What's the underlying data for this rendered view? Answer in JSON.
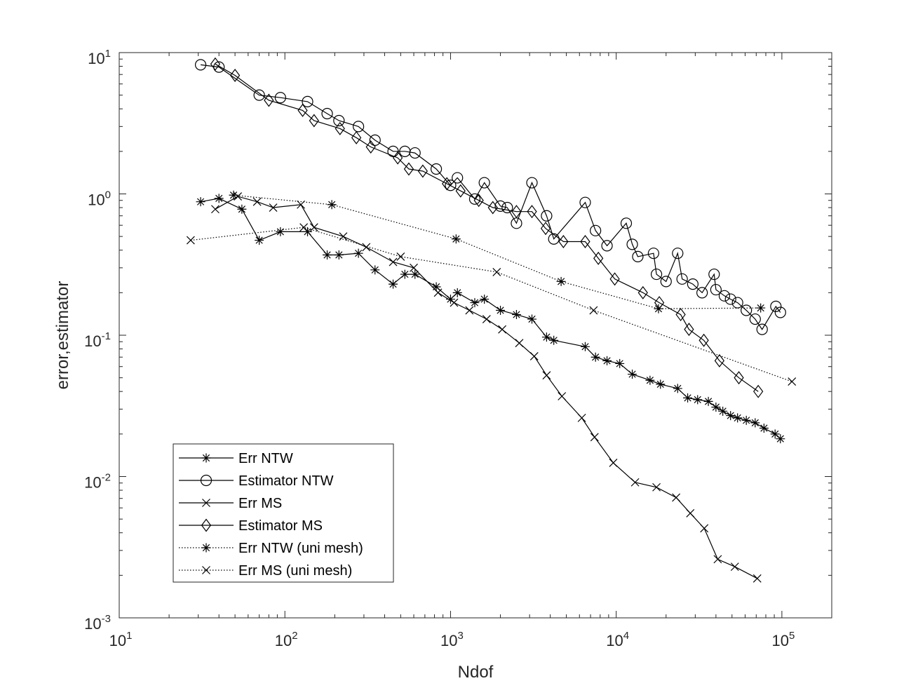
{
  "chart_data": {
    "type": "line",
    "scale": "log-log",
    "title": "",
    "xlabel": "Ndof",
    "ylabel": "error,estimator",
    "xlim": [
      10,
      200000
    ],
    "ylim": [
      0.001,
      10
    ],
    "x_ticks": [
      {
        "base": "10",
        "exp": "1",
        "value": 10
      },
      {
        "base": "10",
        "exp": "2",
        "value": 100
      },
      {
        "base": "10",
        "exp": "3",
        "value": 1000
      },
      {
        "base": "10",
        "exp": "4",
        "value": 10000
      },
      {
        "base": "10",
        "exp": "5",
        "value": 100000
      }
    ],
    "y_ticks": [
      {
        "base": "10",
        "exp": "-3",
        "value": 0.001
      },
      {
        "base": "10",
        "exp": "-2",
        "value": 0.01
      },
      {
        "base": "10",
        "exp": "-1",
        "value": 0.1
      },
      {
        "base": "10",
        "exp": "0",
        "value": 1
      },
      {
        "base": "10",
        "exp": "1",
        "value": 10
      }
    ],
    "legend_position": "bottom-left",
    "series": [
      {
        "name": "Err NTW",
        "marker": "asterisk",
        "line": "solid",
        "x": [
          31,
          40,
          55,
          70,
          94,
          137,
          180,
          212,
          278,
          350,
          450,
          530,
          610,
          820,
          1000,
          1100,
          1400,
          1600,
          2000,
          2500,
          3100,
          3800,
          4200,
          6500,
          7500,
          8800,
          10500,
          12500,
          16000,
          18500,
          23500,
          27000,
          31000,
          36000,
          40000,
          44000,
          49000,
          54000,
          61000,
          69000,
          78000,
          91000,
          98000
        ],
        "y": [
          0.88,
          0.93,
          0.78,
          0.47,
          0.54,
          0.54,
          0.37,
          0.37,
          0.38,
          0.29,
          0.23,
          0.27,
          0.27,
          0.22,
          0.18,
          0.2,
          0.17,
          0.18,
          0.15,
          0.14,
          0.13,
          0.097,
          0.092,
          0.083,
          0.07,
          0.066,
          0.063,
          0.053,
          0.048,
          0.045,
          0.042,
          0.036,
          0.035,
          0.034,
          0.031,
          0.029,
          0.027,
          0.026,
          0.025,
          0.024,
          0.022,
          0.02,
          0.0185
        ]
      },
      {
        "name": "Estimator NTW",
        "marker": "circle",
        "line": "solid",
        "x": [
          31,
          40,
          70,
          94,
          137,
          180,
          212,
          278,
          350,
          450,
          530,
          610,
          820,
          1000,
          1100,
          1400,
          1600,
          2000,
          2200,
          2500,
          3100,
          3800,
          4200,
          6500,
          7500,
          8800,
          11500,
          12500,
          13500,
          16800,
          17500,
          20000,
          23500,
          25000,
          29000,
          33000,
          39000,
          40000,
          45000,
          49000,
          54000,
          61000,
          69000,
          76000,
          92000,
          98000
        ],
        "y": [
          8.2,
          7.9,
          5.0,
          4.8,
          4.5,
          3.7,
          3.3,
          3.0,
          2.4,
          2.0,
          2.0,
          1.95,
          1.5,
          1.15,
          1.3,
          0.92,
          1.2,
          0.82,
          0.8,
          0.62,
          1.2,
          0.7,
          0.48,
          0.87,
          0.55,
          0.43,
          0.62,
          0.44,
          0.36,
          0.38,
          0.27,
          0.24,
          0.38,
          0.25,
          0.23,
          0.2,
          0.27,
          0.21,
          0.19,
          0.18,
          0.17,
          0.15,
          0.13,
          0.11,
          0.16,
          0.145
        ]
      },
      {
        "name": "Err MS",
        "marker": "x",
        "line": "solid",
        "x": [
          38,
          52,
          68,
          85,
          125,
          150,
          225,
          310,
          450,
          600,
          840,
          1050,
          1300,
          1650,
          2050,
          2600,
          3200,
          3800,
          4700,
          6200,
          7400,
          9600,
          13000,
          17500,
          23000,
          28000,
          34000,
          41000,
          52000,
          71000
        ],
        "y": [
          0.78,
          0.96,
          0.88,
          0.8,
          0.84,
          0.58,
          0.5,
          0.42,
          0.33,
          0.3,
          0.2,
          0.17,
          0.15,
          0.13,
          0.11,
          0.088,
          0.071,
          0.052,
          0.037,
          0.026,
          0.019,
          0.0125,
          0.0091,
          0.0084,
          0.0071,
          0.0055,
          0.0043,
          0.0026,
          0.0023,
          0.0019
        ]
      },
      {
        "name": "Estimator MS",
        "marker": "diamond",
        "line": "solid",
        "x": [
          38,
          50,
          80,
          128,
          150,
          215,
          270,
          330,
          480,
          560,
          680,
          950,
          1150,
          1480,
          1800,
          2500,
          3100,
          3750,
          4800,
          6500,
          7800,
          9800,
          14500,
          18200,
          24500,
          27500,
          33800,
          42000,
          55000,
          72000
        ],
        "y": [
          8.3,
          6.9,
          4.6,
          3.9,
          3.3,
          2.9,
          2.5,
          2.15,
          1.8,
          1.5,
          1.45,
          1.18,
          1.05,
          0.9,
          0.8,
          0.75,
          0.75,
          0.57,
          0.46,
          0.46,
          0.35,
          0.25,
          0.2,
          0.17,
          0.14,
          0.11,
          0.092,
          0.066,
          0.05,
          0.04
        ]
      },
      {
        "name": "Err NTW (uni mesh)",
        "marker": "asterisk",
        "line": "dotted",
        "x": [
          49,
          192,
          1080,
          4650,
          18000,
          74500
        ],
        "y": [
          0.98,
          0.84,
          0.48,
          0.24,
          0.154,
          0.156
        ]
      },
      {
        "name": "Err MS (uni mesh)",
        "marker": "x",
        "line": "dotted",
        "x": [
          27,
          130,
          500,
          1900,
          7300,
          115000
        ],
        "y": [
          0.47,
          0.58,
          0.36,
          0.28,
          0.15,
          0.047
        ]
      }
    ]
  }
}
